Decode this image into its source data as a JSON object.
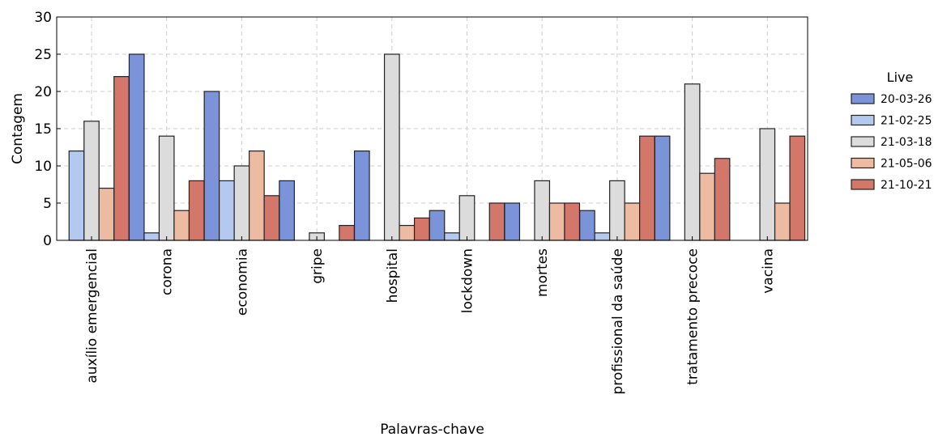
{
  "chart_data": {
    "type": "bar",
    "xlabel": "Palavras-chave",
    "ylabel": "Contagem",
    "ylim": [
      0,
      30
    ],
    "yticks": [
      0,
      5,
      10,
      15,
      20,
      25,
      30
    ],
    "grid": true,
    "legend": {
      "title": "Live",
      "placement": "right"
    },
    "categories": [
      "auxílio emergencial",
      "corona",
      "economia",
      "gripe",
      "hospital",
      "lockdown",
      "mortes",
      "profissional da saúde",
      "tratamento precoce",
      "vacina"
    ],
    "series": [
      {
        "name": "20-03-26",
        "color": "#7b93d9",
        "values": [
          0,
          25,
          20,
          8,
          12,
          4,
          5,
          4,
          14,
          0
        ]
      },
      {
        "name": "21-02-25",
        "color": "#b4c9ef",
        "values": [
          12,
          1,
          8,
          0,
          0,
          1,
          0,
          1,
          0,
          0
        ]
      },
      {
        "name": "21-03-18",
        "color": "#dcdcdc",
        "values": [
          16,
          14,
          10,
          1,
          25,
          6,
          8,
          8,
          21,
          15
        ]
      },
      {
        "name": "21-05-06",
        "color": "#edbba2",
        "values": [
          7,
          4,
          12,
          0,
          2,
          0,
          5,
          5,
          9,
          5
        ]
      },
      {
        "name": "21-10-21",
        "color": "#d2776a",
        "values": [
          22,
          8,
          6,
          2,
          3,
          5,
          5,
          14,
          11,
          14
        ]
      }
    ]
  }
}
